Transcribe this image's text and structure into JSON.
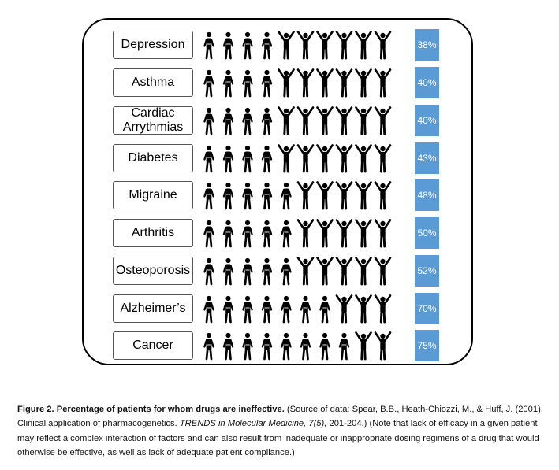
{
  "chart_data": {
    "type": "pictogram",
    "icons_per_row": 10,
    "categories": [
      "Depression",
      "Asthma",
      "Cardiac Arrythmias",
      "Diabetes",
      "Migraine",
      "Arthritis",
      "Osteoporosis",
      "Alzheimer’s",
      "Cancer"
    ],
    "label_lines": [
      [
        "Depression"
      ],
      [
        "Asthma"
      ],
      [
        "Cardiac",
        "Arrythmias"
      ],
      [
        "Diabetes"
      ],
      [
        "Migraine"
      ],
      [
        "Arthritis"
      ],
      [
        "Osteoporosis"
      ],
      [
        "Alzheimer’s"
      ],
      [
        "Cancer"
      ]
    ],
    "values": [
      38,
      40,
      40,
      43,
      48,
      50,
      52,
      70,
      75
    ],
    "value_labels": [
      "38%",
      "40%",
      "40%",
      "43%",
      "48%",
      "50%",
      "52%",
      "70%",
      "75%"
    ],
    "ineffective_icons": [
      4,
      4,
      4,
      4,
      5,
      5,
      5,
      7,
      8
    ],
    "colors": {
      "icon": "#000000",
      "bar": "#5b9bd5",
      "bar_text": "#ffffff",
      "frame": "#000000"
    }
  },
  "caption": {
    "bold": "Figure 2. Percentage of patients for whom drugs are ineffective.",
    "text1": " (Source of data: Spear, B.B., Heath-Chiozzi, M., & Huff, J. (2001). Clinical application of pharmacogenetics. ",
    "italic": "TRENDS in Molecular Medicine, 7(5),",
    "text2": " 201-204.) (Note that lack of efficacy in a given patient may reflect a complex interaction of factors and can also result from inadequate or inappropriate dosing regimens of a drug that would otherwise be effective, as well as lack of adequate patient compliance.)"
  }
}
